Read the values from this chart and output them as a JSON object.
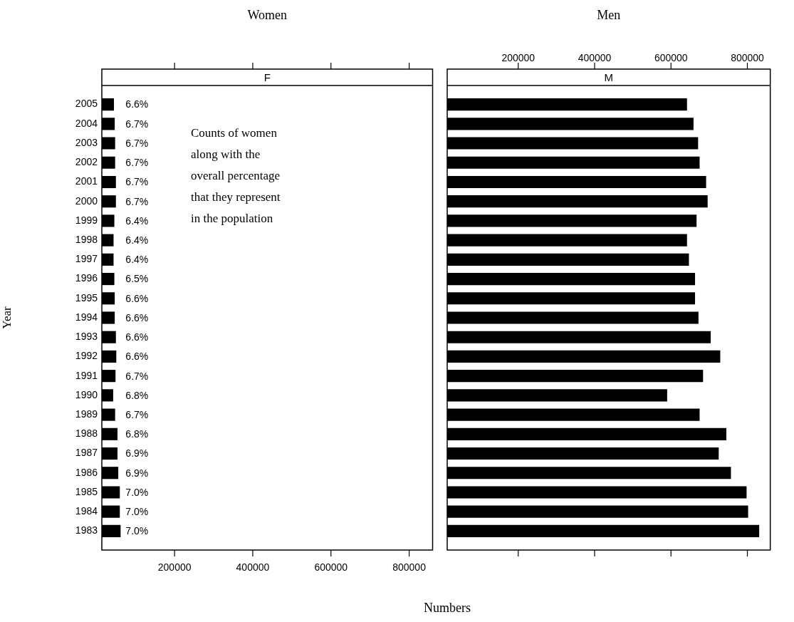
{
  "chart_data": [
    {
      "type": "bar",
      "orientation": "horizontal",
      "title": "Women",
      "subtitle": "F",
      "xlabel": "Numbers",
      "ylabel": "Year",
      "color": "#000000",
      "categories": [
        "2005",
        "2004",
        "2003",
        "2002",
        "2001",
        "2000",
        "1999",
        "1998",
        "1997",
        "1996",
        "1995",
        "1994",
        "1993",
        "1992",
        "1991",
        "1990",
        "1989",
        "1988",
        "1987",
        "1986",
        "1985",
        "1984",
        "1983"
      ],
      "values": [
        45000,
        47000,
        48000,
        48000,
        50000,
        50000,
        46000,
        44000,
        44000,
        46000,
        47000,
        47000,
        50000,
        51000,
        49000,
        43000,
        48000,
        54000,
        54000,
        56000,
        60000,
        60000,
        62000
      ],
      "xlim": [
        14000,
        860000
      ],
      "xticks": [
        200000,
        400000,
        600000,
        800000
      ],
      "annotations": [
        "Counts of women\nalong with the\noverall percentage\nthat they represent\nin the population",
        "6.6%",
        "6.7%",
        "6.7%",
        "6.7%",
        "6.7%",
        "6.7%",
        "6.4%",
        "6.4%",
        "6.4%",
        "6.5%",
        "6.6%",
        "6.6%",
        "6.6%",
        "6.6%",
        "6.7%",
        "6.8%",
        "6.7%",
        "6.8%",
        "6.9%",
        "6.9%",
        "7.0%",
        "7.0%",
        "7.0%"
      ]
    },
    {
      "type": "bar",
      "orientation": "horizontal",
      "title": "Men",
      "subtitle": "M",
      "tick_labels": "x",
      "categories": [
        "2005",
        "2004",
        "2003",
        "2002",
        "2001",
        "2000",
        "1999",
        "1998",
        "1997",
        "1996",
        "1995",
        "1994",
        "1993",
        "1992",
        "1991",
        "1990",
        "1989",
        "1988",
        "1987",
        "1986",
        "1985",
        "1984",
        "1983"
      ],
      "series": [
        {
          "axis": "x2",
          "color": "#000000",
          "values": [
            642000,
            659000,
            671000,
            675000,
            692000,
            696000,
            667000,
            642000,
            647000,
            663000,
            663000,
            672000,
            704000,
            729000,
            684000,
            590000,
            675000,
            745000,
            725000,
            757000,
            798000,
            802000,
            831000
          ]
        }
      ],
      "x2lim": [
        14000,
        860000
      ],
      "x2ticks": [
        200000,
        400000,
        600000,
        800000
      ]
    }
  ]
}
